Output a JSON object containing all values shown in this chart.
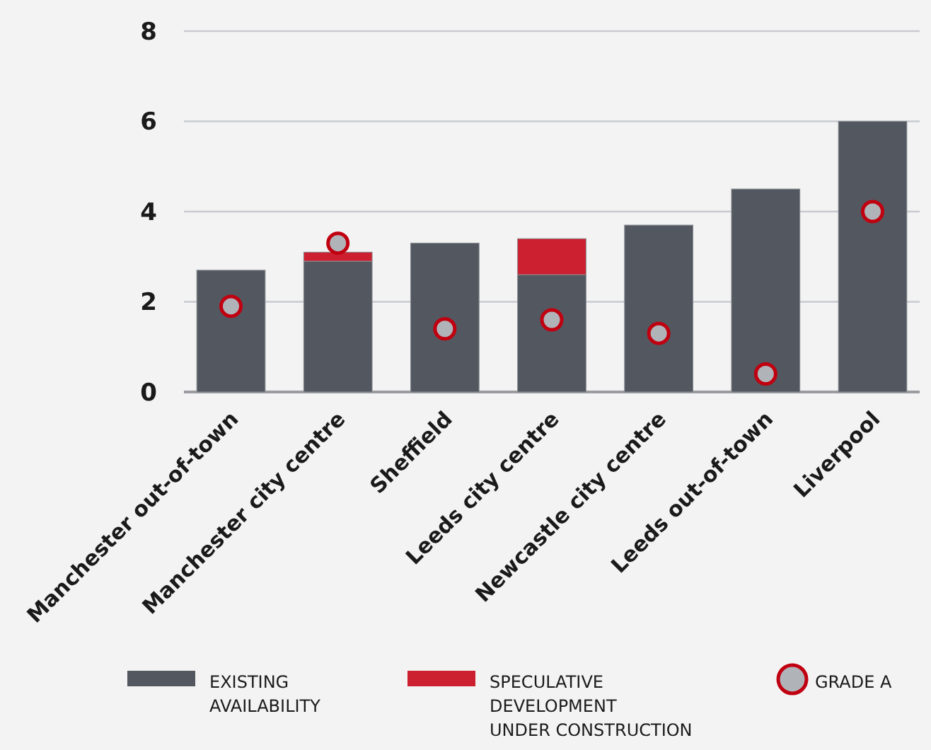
{
  "chart_data": {
    "type": "bar",
    "stacked": true,
    "categories": [
      "Manchester out-of-town",
      "Manchester city centre",
      "Sheffield",
      "Leeds city centre",
      "Newcastle city centre",
      "Leeds out-of-town",
      "Liverpool"
    ],
    "series": [
      {
        "name": "EXISTING AVAILABILITY",
        "color": "#535860",
        "values": [
          2.7,
          2.9,
          3.3,
          2.6,
          3.7,
          4.5,
          6.0
        ]
      },
      {
        "name": "SPECULATIVE DEVELOPMENT UNDER CONSTRUCTION",
        "color": "#cc1f2f",
        "values": [
          0,
          0.2,
          0,
          0.8,
          0,
          0,
          0
        ]
      },
      {
        "name": "GRADE A",
        "type": "scatter",
        "color": "#c00010",
        "marker": "circle",
        "x": [
          "Manchester out-of-town",
          "Manchester city centre",
          "Sheffield",
          "Leeds city centre",
          "Newcastle city centre",
          "Leeds out-of-town",
          "Liverpool"
        ],
        "values": [
          1.9,
          3.3,
          1.4,
          1.6,
          1.3,
          0.4,
          4.0
        ]
      }
    ],
    "ylim": [
      0,
      8
    ],
    "yticks": [
      0,
      2,
      4,
      6,
      8
    ],
    "grid": "y",
    "legend": "bottom"
  }
}
